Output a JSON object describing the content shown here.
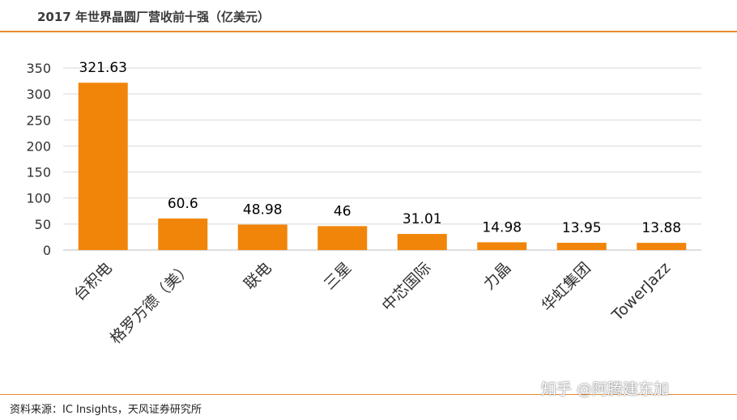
{
  "header": {
    "title": "2017 年世界晶圆厂营收前十强（亿美元）"
  },
  "footer": {
    "source": "资料来源：IC Insights，天风证券研究所"
  },
  "watermark": {
    "text": "知乎 @阿腾建东加"
  },
  "colors": {
    "bar": "#F0850A",
    "rule": "#E98A2C",
    "grid": "#D9D9D9"
  },
  "chart_data": {
    "type": "bar",
    "categories": [
      "台积电",
      "格罗方德（美）",
      "联电",
      "三星",
      "中芯国际",
      "力晶",
      "华虹集团",
      "TowerJazz"
    ],
    "values": [
      321.63,
      60.6,
      48.98,
      46,
      31.01,
      14.98,
      13.95,
      13.88
    ],
    "data_labels": [
      "321.63",
      "60.6",
      "48.98",
      "46",
      "31.01",
      "14.98",
      "13.95",
      "13.88"
    ],
    "ylim": [
      0,
      350
    ],
    "yticks": [
      0,
      50,
      100,
      150,
      200,
      250,
      300,
      350
    ],
    "grid": true,
    "legend": "none"
  }
}
